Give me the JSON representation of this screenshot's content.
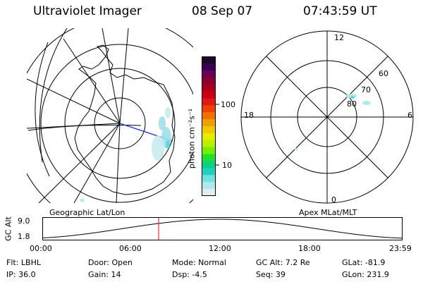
{
  "header": {
    "instrument": "Ultraviolet Imager",
    "date": "08 Sep 07",
    "time": "07:43:59 UT"
  },
  "colorbar": {
    "label": "photon cm⁻²s⁻¹",
    "ticks": [
      "100",
      "10"
    ],
    "colors": [
      "#1a0a2a",
      "#3a0050",
      "#6a0058",
      "#8a0030",
      "#a80018",
      "#c80010",
      "#e01818",
      "#f04000",
      "#f07000",
      "#f0a000",
      "#f0c800",
      "#e8e800",
      "#b8f000",
      "#70f000",
      "#20e030",
      "#10d080",
      "#20d0c0",
      "#70e0e0",
      "#b0e8ec",
      "#dfeef2"
    ]
  },
  "left_map": {
    "projection_label": "Geographic Lat/Lon"
  },
  "right_map": {
    "projection_label": "Apex MLat/MLT",
    "mlt_labels": {
      "top": "12",
      "bottom": "0",
      "left": "18",
      "right": "6"
    },
    "mlat_labels": [
      "60",
      "70",
      "80"
    ]
  },
  "altitude_plot": {
    "ylabel": "GC Alt",
    "yticks": [
      "9.0",
      "1.8"
    ],
    "xticks": [
      "00:00",
      "06:00",
      "12:00",
      "18:00",
      "23:59"
    ],
    "marker_color": "#ff0000"
  },
  "footer": {
    "filter": "Flt: LBHL",
    "door": "Door: Open",
    "mode": "Mode: Normal",
    "gc_alt": "GC Alt: 7.2 Re",
    "glat": "GLat: -81.9",
    "ip": "IP: 36.0",
    "gain": "Gain: 14",
    "dsp": "Dsp:    -4.5",
    "seq": "Seq: 39",
    "glon": "GLon: 231.9"
  }
}
